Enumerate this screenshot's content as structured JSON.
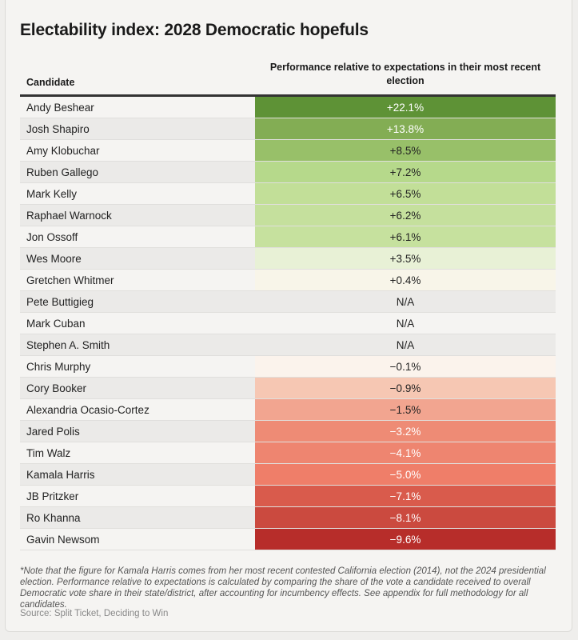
{
  "chart_data": {
    "type": "table",
    "title": "Electability index: 2028 Democratic hopefuls",
    "columns": [
      "Candidate",
      "Performance relative to expectations in their most recent election"
    ],
    "rows": [
      {
        "name": "Andy Beshear",
        "value": "+22.1%",
        "color": "#5e9236",
        "text": "#ffffff"
      },
      {
        "name": "Josh Shapiro",
        "value": "+13.8%",
        "color": "#83ad54",
        "text": "#ffffff"
      },
      {
        "name": "Amy Klobuchar",
        "value": "+8.5%",
        "color": "#98c069",
        "text": "#222222"
      },
      {
        "name": "Ruben Gallego",
        "value": "+7.2%",
        "color": "#b6d98b",
        "text": "#222222"
      },
      {
        "name": "Mark Kelly",
        "value": "+6.5%",
        "color": "#c2df98",
        "text": "#222222"
      },
      {
        "name": "Raphael Warnock",
        "value": "+6.2%",
        "color": "#c5e09d",
        "text": "#222222"
      },
      {
        "name": "Jon Ossoff",
        "value": "+6.1%",
        "color": "#c6e19e",
        "text": "#222222"
      },
      {
        "name": "Wes Moore",
        "value": "+3.5%",
        "color": "#e8f1d6",
        "text": "#222222"
      },
      {
        "name": "Gretchen Whitmer",
        "value": "+0.4%",
        "color": "#f8f5e9",
        "text": "#222222"
      },
      {
        "name": "Pete Buttigieg",
        "value": "N/A",
        "color": "#ebeae8",
        "text": "#222222"
      },
      {
        "name": "Mark Cuban",
        "value": "N/A",
        "color": "#f5f4f2",
        "text": "#222222"
      },
      {
        "name": "Stephen A. Smith",
        "value": "N/A",
        "color": "#ebeae8",
        "text": "#222222"
      },
      {
        "name": "Chris Murphy",
        "value": "−0.1%",
        "color": "#fbf3ec",
        "text": "#222222"
      },
      {
        "name": "Cory Booker",
        "value": "−0.9%",
        "color": "#f6c7b3",
        "text": "#222222"
      },
      {
        "name": "Alexandria Ocasio-Cortez",
        "value": "−1.5%",
        "color": "#f2a590",
        "text": "#222222"
      },
      {
        "name": "Jared Polis",
        "value": "−3.2%",
        "color": "#ee8b75",
        "text": "#ffffff"
      },
      {
        "name": "Tim Walz",
        "value": "−4.1%",
        "color": "#ee8570",
        "text": "#ffffff"
      },
      {
        "name": "Kamala Harris",
        "value": "−5.0%",
        "color": "#ef7e69",
        "text": "#ffffff"
      },
      {
        "name": "JB Pritzker",
        "value": "−7.1%",
        "color": "#d95b4c",
        "text": "#ffffff"
      },
      {
        "name": "Ro Khanna",
        "value": "−8.1%",
        "color": "#cb4a3f",
        "text": "#ffffff"
      },
      {
        "name": "Gavin Newsom",
        "value": "−9.6%",
        "color": "#b72d2a",
        "text": "#ffffff"
      }
    ],
    "note": "*Note that the figure for Kamala Harris comes from her most recent contested California election (2014), not the 2024 presidential election. Performance relative to expectations is calculated by comparing the share of the vote a candidate received to overall Democratic vote share in their state/district, after accounting for incumbency effects. See appendix for full methodology for all candidates.",
    "source": "Source: Split Ticket, Deciding to Win"
  }
}
